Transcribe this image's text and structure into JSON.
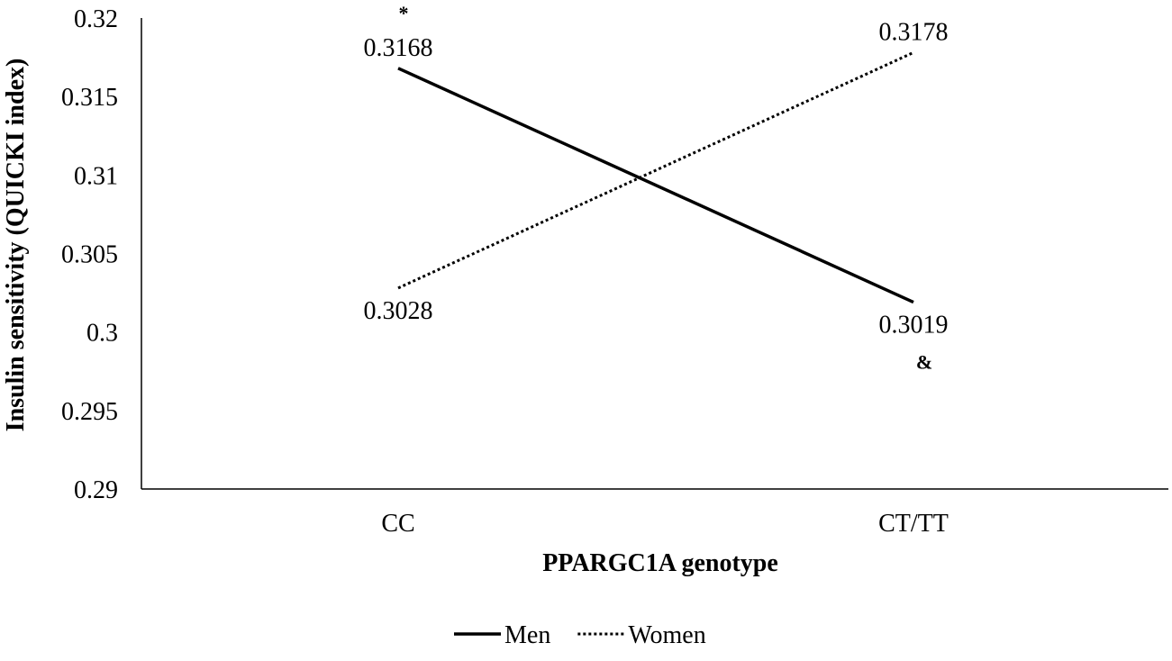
{
  "chart_data": {
    "type": "line",
    "categories": [
      "CC",
      "CT/TT"
    ],
    "xlabel": "PPARGC1A genotype",
    "ylabel": "Insulin sensitivity (QUICKI index)",
    "ylim": [
      0.29,
      0.32
    ],
    "yticks": [
      "0.29",
      "0.295",
      "0.3",
      "0.305",
      "0.31",
      "0.315",
      "0.32"
    ],
    "grid": false,
    "legend_position": "bottom",
    "series": [
      {
        "name": "Men",
        "values": [
          0.3168,
          0.3019
        ],
        "labels": [
          "0.3168",
          "0.3019"
        ],
        "style": "solid",
        "color": "#000000"
      },
      {
        "name": "Women",
        "values": [
          0.3028,
          0.3178
        ],
        "labels": [
          "0.3028",
          "0.3178"
        ],
        "style": "dotted",
        "color": "#000000"
      }
    ],
    "annotations": [
      {
        "text": "*",
        "category": "CC",
        "series": "Men"
      },
      {
        "text": "&",
        "category": "CT/TT",
        "series": "Men"
      }
    ]
  }
}
